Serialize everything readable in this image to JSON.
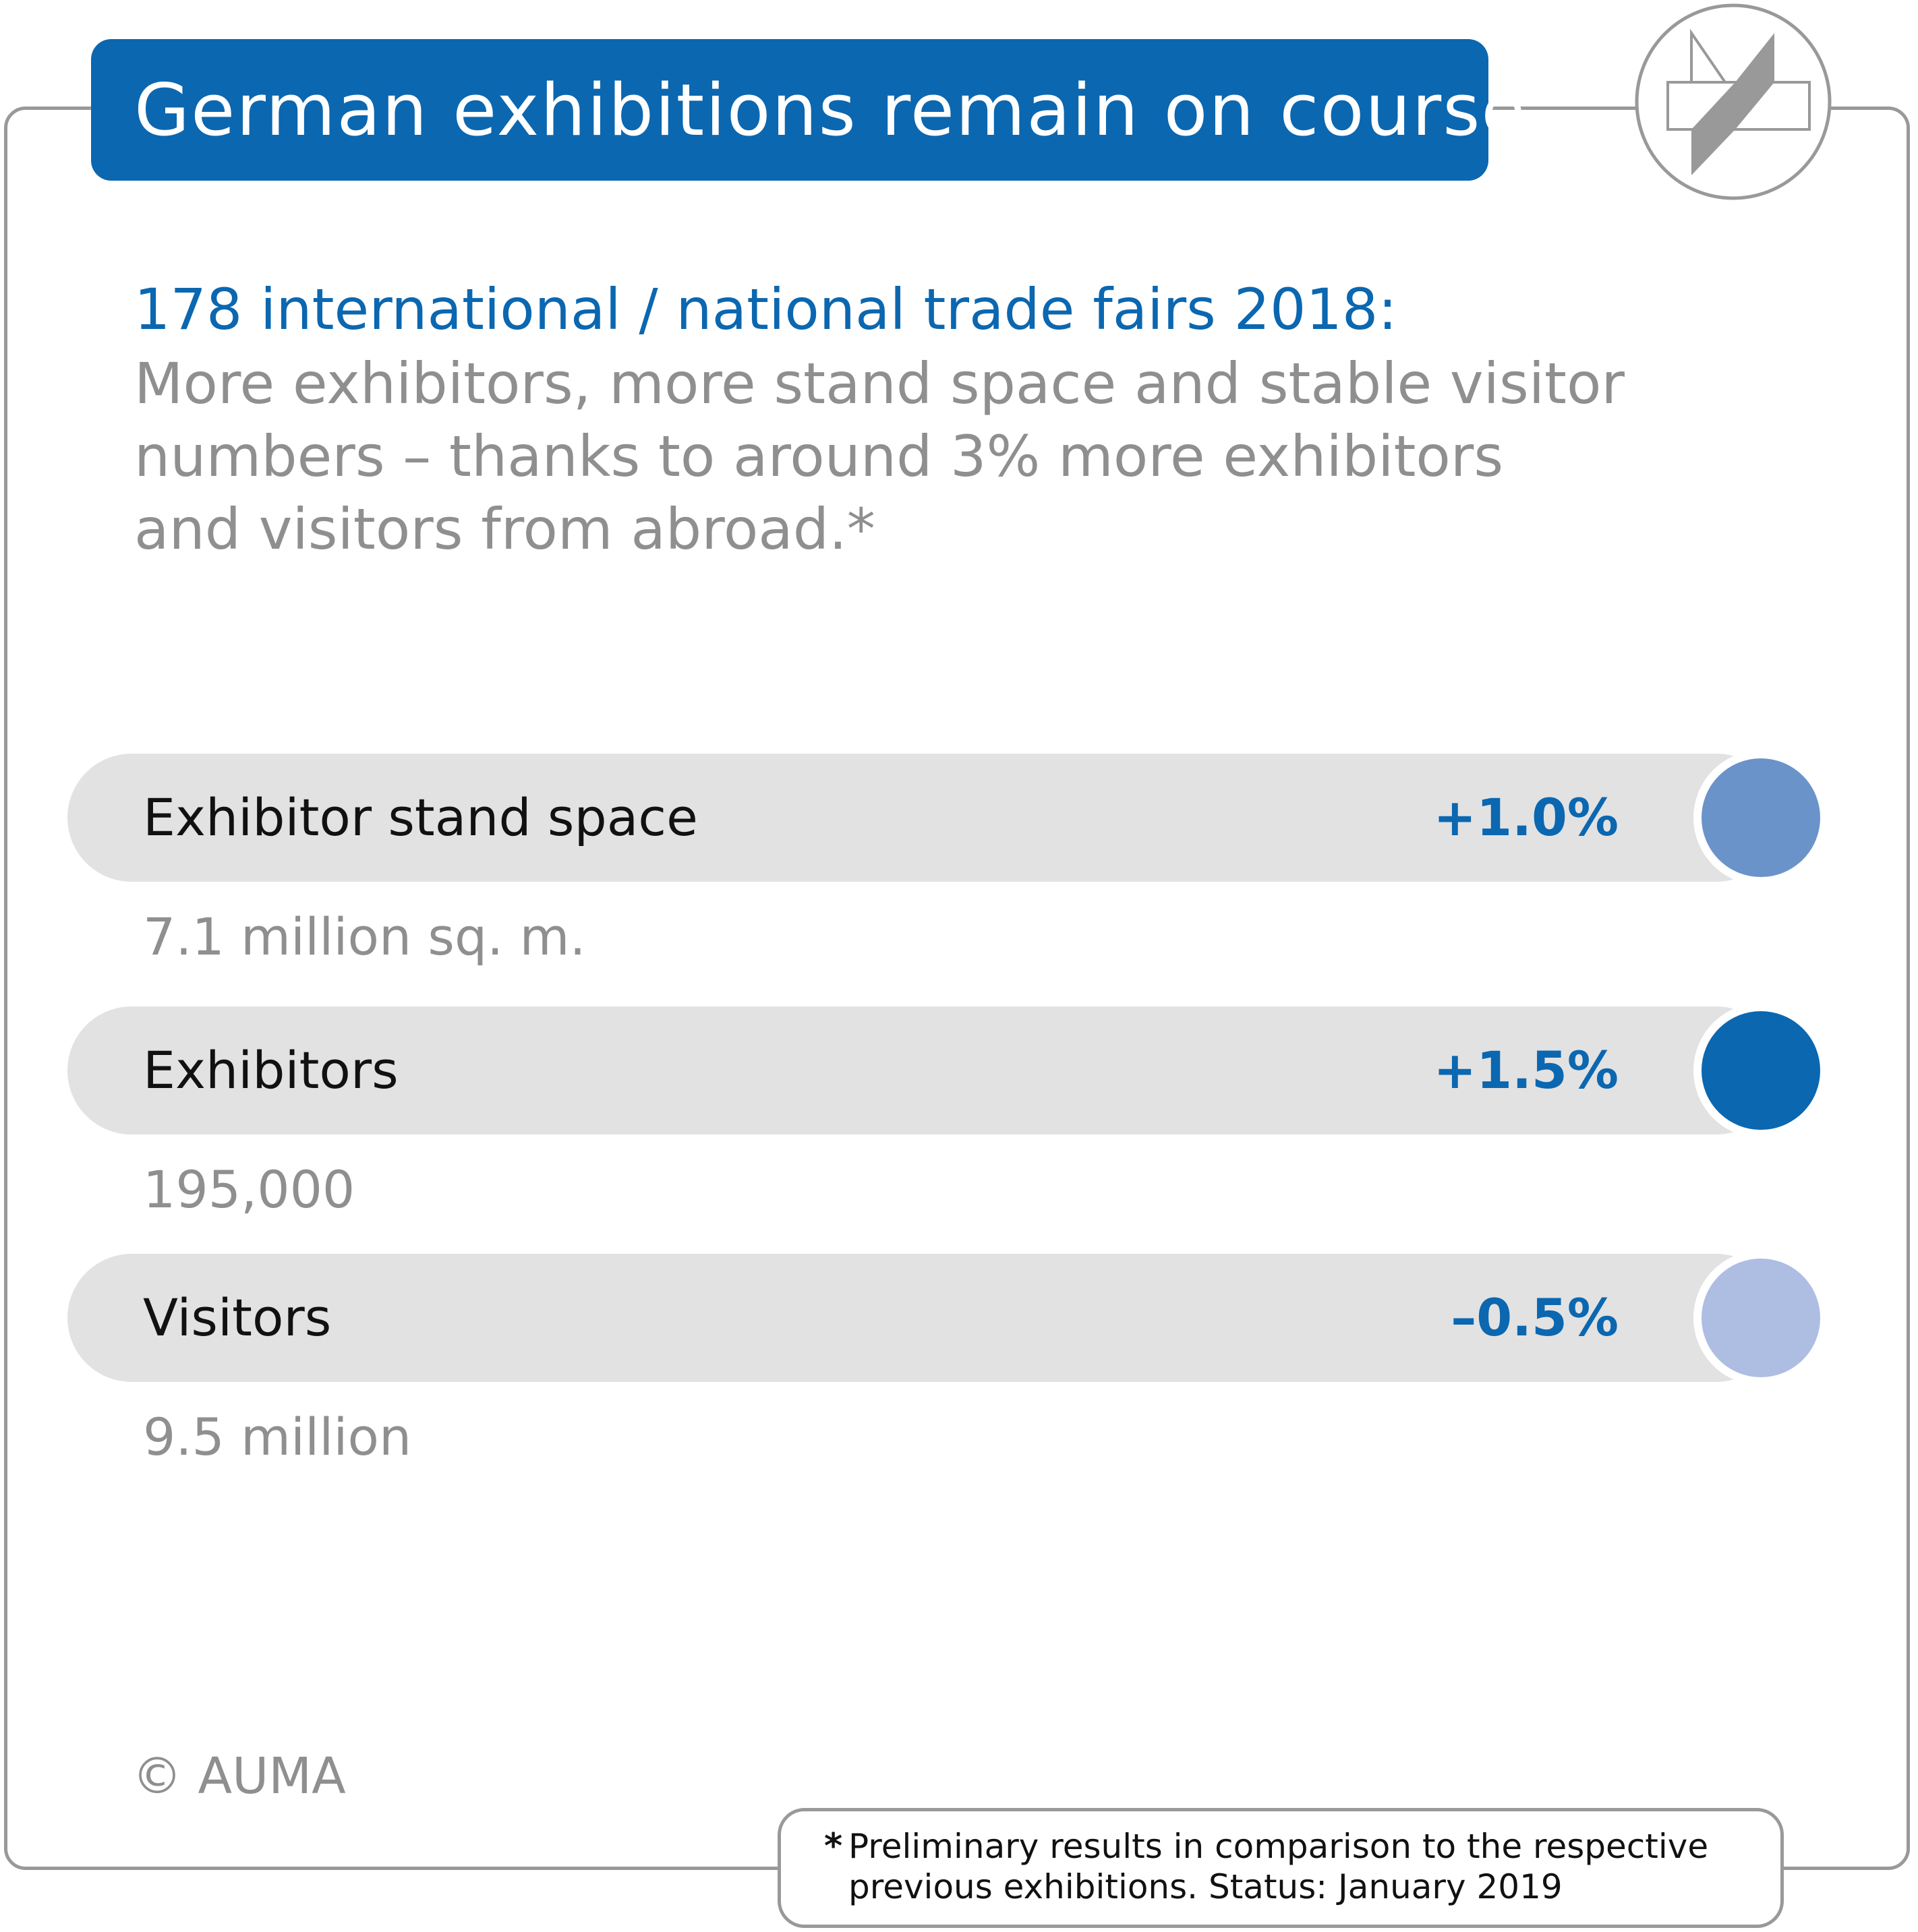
{
  "header": {
    "title": "German exhibitions remain on course"
  },
  "intro": {
    "headline": "178 international / national trade fairs 2018:",
    "lines": [
      "More exhibitors, more stand space and stable visitor",
      "numbers – thanks to around 3% more exhibitors",
      "and visitors from abroad.*"
    ]
  },
  "metrics": [
    {
      "label": "Exhibitor stand space",
      "change": "+1.0%",
      "value": "7.1 million sq. m.",
      "dot_color": "#6a93ca"
    },
    {
      "label": "Exhibitors",
      "change": "+1.5%",
      "value": "195,000",
      "dot_color": "#0b67b0"
    },
    {
      "label": "Visitors",
      "change": "–0.5%",
      "value": "9.5 million",
      "dot_color": "#aebde2"
    }
  ],
  "copyright": "© AUMA",
  "footnote": {
    "star": "*",
    "text": "Preliminary results in comparison to the respective previous exhibitions. Status: January 2019"
  },
  "colors": {
    "brand_blue": "#0b67b0",
    "bar_grey": "#e2e2e3",
    "text_grey": "#8f8f8f",
    "frame_grey": "#999999"
  },
  "logo": {
    "icon": "auma-logo-icon"
  }
}
